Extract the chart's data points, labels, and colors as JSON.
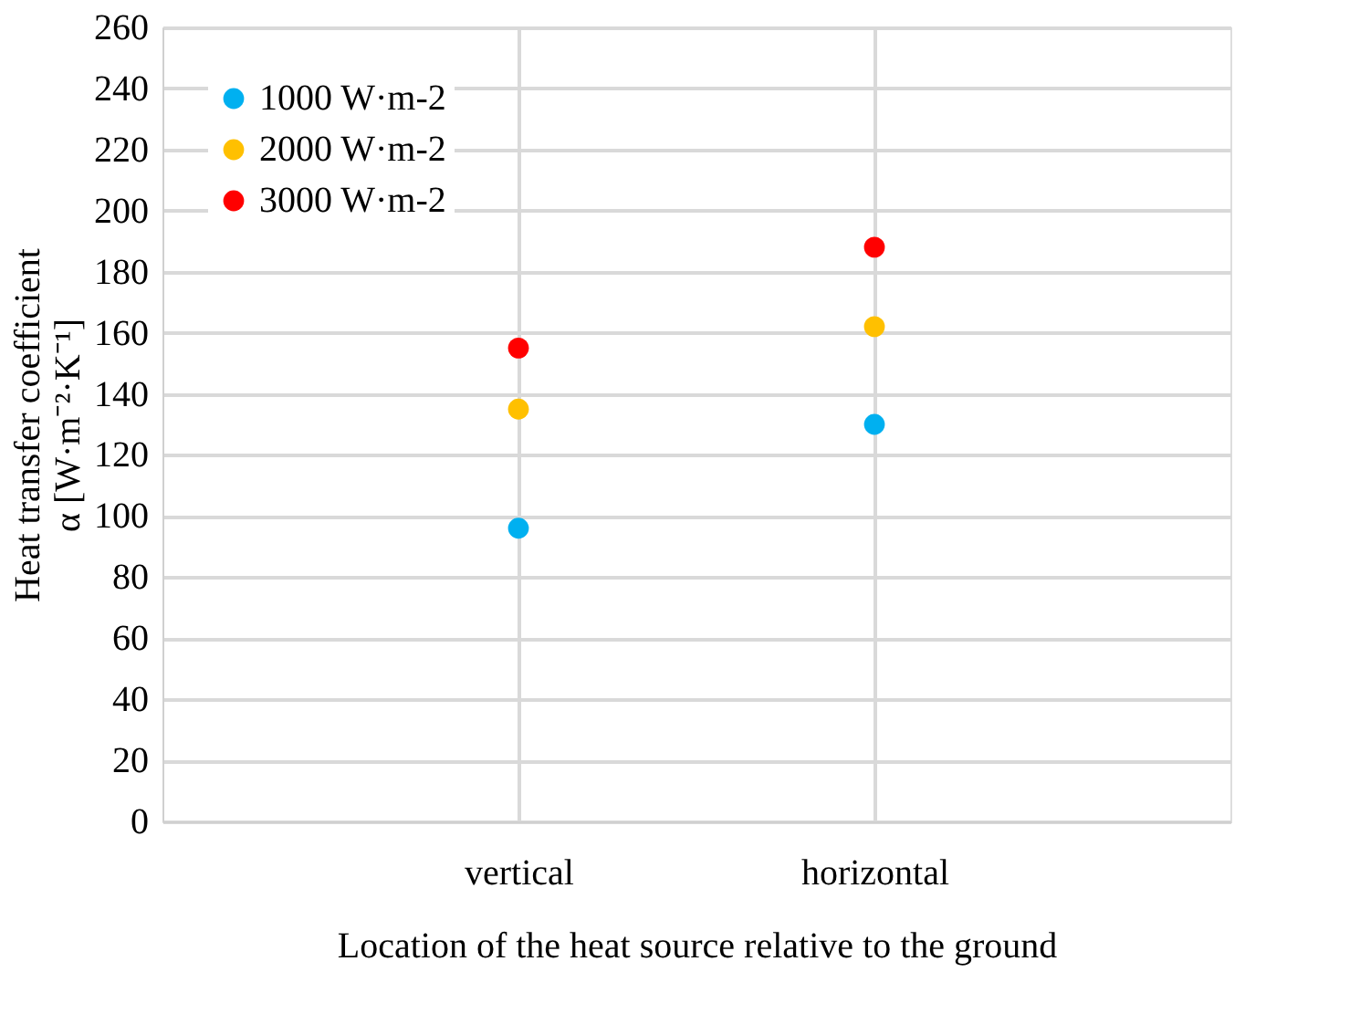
{
  "chart_data": {
    "type": "scatter",
    "categories": [
      null,
      "vertical",
      "horizontal",
      null
    ],
    "series": [
      {
        "name": "1000 W·m-2",
        "color": "#00b0f0",
        "values": [
          null,
          96,
          130,
          null
        ]
      },
      {
        "name": "2000 W·m-2",
        "color": "#ffc000",
        "values": [
          null,
          135,
          162,
          null
        ]
      },
      {
        "name": "3000 W·m-2",
        "color": "#ff0000",
        "values": [
          null,
          155,
          188,
          null
        ]
      }
    ],
    "xlabel": "Location of the heat source relative to the ground",
    "ylabel": "Heat transfer coefficient\nα [W·m⁻²·K⁻¹]",
    "ylim": [
      0,
      260
    ],
    "yticks": [
      0,
      20,
      40,
      60,
      80,
      100,
      120,
      140,
      160,
      180,
      200,
      220,
      240,
      260
    ],
    "grid": true,
    "legend": "top left",
    "marker": "circle"
  }
}
